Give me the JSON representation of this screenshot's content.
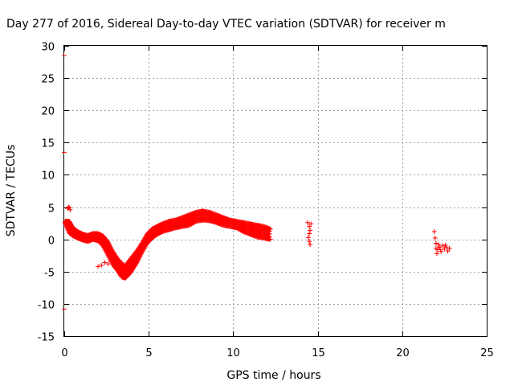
{
  "chart_data": {
    "type": "scatter",
    "title": "Day 277 of 2016, Sidereal Day-to-day VTEC variation (SDTVAR) for receiver m",
    "xlabel": "GPS time / hours",
    "ylabel": "SDTVAR / TECUs",
    "xlim": [
      0,
      25
    ],
    "ylim": [
      -15,
      30
    ],
    "xticks": [
      0,
      5,
      10,
      15,
      20,
      25
    ],
    "yticks": [
      -15,
      -10,
      -5,
      0,
      5,
      10,
      15,
      20,
      25,
      30
    ],
    "grid": true,
    "marker": "plus",
    "color": "#ff0000",
    "series": [
      {
        "name": "SDTVAR",
        "band": [
          [
            0.05,
            2.5,
            2.8
          ],
          [
            0.3,
            1.0,
            2.8
          ],
          [
            0.5,
            0.6,
            1.8
          ],
          [
            0.8,
            0.2,
            1.2
          ],
          [
            1.1,
            -0.1,
            0.8
          ],
          [
            1.4,
            -0.3,
            0.6
          ],
          [
            1.7,
            0.0,
            0.9
          ],
          [
            2.0,
            -0.2,
            0.9
          ],
          [
            2.3,
            -1.0,
            0.5
          ],
          [
            2.6,
            -2.5,
            -0.5
          ],
          [
            2.9,
            -4.0,
            -2.0
          ],
          [
            3.2,
            -5.0,
            -3.2
          ],
          [
            3.4,
            -5.8,
            -3.8
          ],
          [
            3.6,
            -6.0,
            -4.2
          ],
          [
            3.8,
            -5.5,
            -3.5
          ],
          [
            4.0,
            -4.8,
            -2.8
          ],
          [
            4.3,
            -3.6,
            -1.8
          ],
          [
            4.6,
            -2.0,
            -0.6
          ],
          [
            4.9,
            -0.6,
            0.8
          ],
          [
            5.2,
            0.2,
            1.6
          ],
          [
            5.5,
            0.8,
            2.0
          ],
          [
            5.8,
            1.2,
            2.4
          ],
          [
            6.2,
            1.5,
            2.8
          ],
          [
            6.6,
            1.8,
            3.0
          ],
          [
            7.0,
            2.0,
            3.4
          ],
          [
            7.4,
            2.2,
            3.8
          ],
          [
            7.8,
            2.8,
            4.2
          ],
          [
            8.2,
            3.0,
            4.4
          ],
          [
            8.6,
            2.9,
            4.2
          ],
          [
            9.0,
            2.6,
            3.8
          ],
          [
            9.4,
            2.2,
            3.4
          ],
          [
            9.8,
            2.0,
            3.0
          ],
          [
            10.2,
            1.8,
            2.8
          ],
          [
            10.6,
            1.2,
            2.6
          ],
          [
            11.0,
            0.8,
            2.4
          ],
          [
            11.4,
            0.4,
            2.2
          ],
          [
            11.8,
            0.2,
            2.0
          ],
          [
            12.2,
            0.0,
            1.6
          ]
        ],
        "extra_points": [
          [
            0.2,
            4.8
          ],
          [
            0.3,
            4.9
          ],
          [
            0.35,
            4.6
          ],
          [
            0.25,
            5.0
          ],
          [
            2.0,
            -4.2
          ],
          [
            2.2,
            -4.0
          ],
          [
            2.4,
            -3.6
          ],
          [
            2.6,
            -3.8
          ],
          [
            2.8,
            -3.4
          ],
          [
            3.0,
            -3.6
          ],
          [
            3.2,
            -3.2
          ],
          [
            3.4,
            -3.6
          ],
          [
            14.4,
            2.6
          ],
          [
            14.5,
            2.0
          ],
          [
            14.55,
            1.4
          ],
          [
            14.5,
            0.9
          ],
          [
            14.45,
            0.3
          ],
          [
            14.5,
            -0.3
          ],
          [
            14.55,
            -0.8
          ],
          [
            14.6,
            2.4
          ],
          [
            21.9,
            1.2
          ],
          [
            21.95,
            0.2
          ],
          [
            22.0,
            -0.6
          ],
          [
            22.0,
            -1.4
          ],
          [
            22.05,
            -2.2
          ],
          [
            22.1,
            -1.6
          ],
          [
            22.2,
            -1.2
          ],
          [
            22.3,
            -1.9
          ],
          [
            22.4,
            -1.0
          ],
          [
            22.5,
            -1.5
          ],
          [
            22.6,
            -1.2
          ],
          [
            22.7,
            -1.8
          ],
          [
            22.8,
            -1.4
          ],
          [
            22.15,
            -0.8
          ],
          [
            22.25,
            -1.6
          ],
          [
            22.55,
            -0.9
          ]
        ],
        "edge_ticks": [
          28.5,
          13.5,
          -10.8
        ]
      }
    ]
  }
}
